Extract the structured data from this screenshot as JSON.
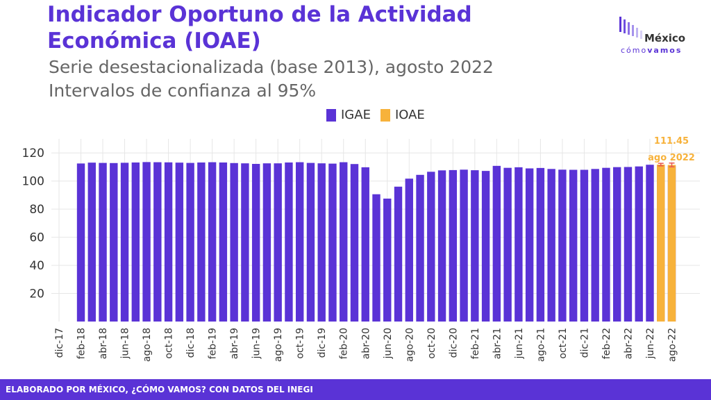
{
  "header": {
    "title": "Indicador Oportuno de la Actividad Económica (IOAE)",
    "subtitle_line1": "Serie desestacionalizada (base 2013), agosto 2022",
    "subtitle_line2": "Intervalos de confianza al 95%"
  },
  "logo": {
    "name": "México",
    "tagline_a": "cómo",
    "tagline_b": "vamos"
  },
  "footer": {
    "text": "ELABORADO POR MÉXICO, ¿CÓMO VAMOS? CON DATOS DEL INEGI"
  },
  "colors": {
    "igae": "#5a33d6",
    "ioae": "#f7b23b",
    "error_bar": "#e8574f",
    "grid": "#e6e6e6",
    "axis_text": "#333333"
  },
  "chart_data": {
    "type": "bar",
    "x_ticks": [
      "dic-17",
      "feb-18",
      "abr-18",
      "jun-18",
      "ago-18",
      "oct-18",
      "dic-18",
      "feb-19",
      "abr-19",
      "jun-19",
      "ago-19",
      "oct-19",
      "dic-19",
      "feb-20",
      "abr-20",
      "jun-20",
      "ago-20",
      "oct-20",
      "dic-20",
      "feb-21",
      "abr-21",
      "jun-21",
      "ago-21",
      "oct-21",
      "dic-21",
      "feb-22",
      "abr-22",
      "jun-22",
      "ago-22"
    ],
    "categories": [
      "dic-17",
      "ene-18",
      "feb-18",
      "mar-18",
      "abr-18",
      "may-18",
      "jun-18",
      "jul-18",
      "ago-18",
      "sep-18",
      "oct-18",
      "nov-18",
      "dic-18",
      "ene-19",
      "feb-19",
      "mar-19",
      "abr-19",
      "may-19",
      "jun-19",
      "jul-19",
      "ago-19",
      "sep-19",
      "oct-19",
      "nov-19",
      "dic-19",
      "ene-20",
      "feb-20",
      "mar-20",
      "abr-20",
      "may-20",
      "jun-20",
      "jul-20",
      "ago-20",
      "sep-20",
      "oct-20",
      "nov-20",
      "dic-20",
      "ene-21",
      "feb-21",
      "mar-21",
      "abr-21",
      "may-21",
      "jun-21",
      "jul-21",
      "ago-21",
      "sep-21",
      "oct-21",
      "nov-21",
      "dic-21",
      "ene-22",
      "feb-22",
      "mar-22",
      "abr-22",
      "may-22",
      "jun-22",
      "jul-22",
      "ago-22"
    ],
    "series": [
      {
        "name": "IGAE",
        "values": [
          null,
          null,
          112.5,
          113.1,
          112.9,
          112.8,
          113.0,
          113.2,
          113.5,
          113.4,
          113.3,
          113.1,
          112.9,
          113.2,
          113.4,
          113.2,
          112.8,
          112.6,
          112.2,
          112.6,
          112.6,
          113.2,
          113.4,
          112.9,
          112.6,
          112.4,
          113.4,
          112.1,
          109.8,
          90.6,
          87.5,
          96.0,
          101.7,
          104.4,
          106.6,
          107.6,
          107.8,
          108.1,
          107.7,
          107.2,
          110.8,
          109.4,
          109.8,
          109.0,
          109.3,
          108.6,
          108.1,
          108.0,
          108.0,
          108.6,
          109.4,
          109.9,
          110.0,
          110.4,
          111.6,
          111.5,
          110.9
        ]
      },
      {
        "name": "IOAE",
        "values": [
          null,
          null,
          null,
          null,
          null,
          null,
          null,
          null,
          null,
          null,
          null,
          null,
          null,
          null,
          null,
          null,
          null,
          null,
          null,
          null,
          null,
          null,
          null,
          null,
          null,
          null,
          null,
          null,
          null,
          null,
          null,
          null,
          null,
          null,
          null,
          null,
          null,
          null,
          null,
          null,
          null,
          null,
          null,
          null,
          null,
          null,
          null,
          null,
          null,
          null,
          null,
          null,
          null,
          null,
          null,
          111.7,
          111.45
        ],
        "ci_low": [
          null,
          null,
          null,
          null,
          null,
          null,
          null,
          null,
          null,
          null,
          null,
          null,
          null,
          null,
          null,
          null,
          null,
          null,
          null,
          null,
          null,
          null,
          null,
          null,
          null,
          null,
          null,
          null,
          null,
          null,
          null,
          null,
          null,
          null,
          null,
          null,
          null,
          null,
          null,
          null,
          null,
          null,
          null,
          null,
          null,
          null,
          null,
          null,
          null,
          null,
          null,
          null,
          null,
          null,
          null,
          110.8,
          110.1
        ],
        "ci_high": [
          null,
          null,
          null,
          null,
          null,
          null,
          null,
          null,
          null,
          null,
          null,
          null,
          null,
          null,
          null,
          null,
          null,
          null,
          null,
          null,
          null,
          null,
          null,
          null,
          null,
          null,
          null,
          null,
          null,
          null,
          null,
          null,
          null,
          null,
          null,
          null,
          null,
          null,
          null,
          null,
          null,
          null,
          null,
          null,
          null,
          null,
          null,
          null,
          null,
          null,
          null,
          null,
          null,
          null,
          null,
          112.6,
          112.8
        ]
      }
    ],
    "annotation": {
      "value": "111.45",
      "label": "ago 2022"
    },
    "y_ticks": [
      20,
      40,
      60,
      80,
      100,
      120
    ],
    "ylim": [
      0,
      130
    ],
    "xlabel": "",
    "ylabel": "",
    "legend": "top-center",
    "grid": true
  }
}
